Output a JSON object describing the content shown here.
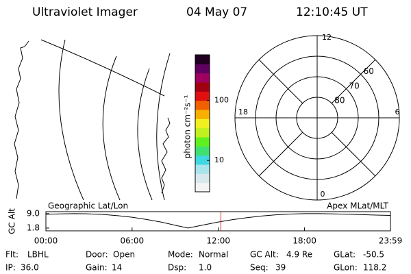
{
  "header": {
    "title": "Ultraviolet Imager",
    "date": "04 May 07",
    "time": "12:10:45 UT"
  },
  "colorbar": {
    "label": "photon cm⁻²s⁻¹",
    "log": true,
    "range": [
      3,
      575
    ],
    "ticks": [
      10,
      100
    ],
    "colors": [
      "#f4f4f4",
      "#d8e8ec",
      "#a8e4ec",
      "#40d8e0",
      "#40e070",
      "#60f020",
      "#c0f020",
      "#f0f020",
      "#f8b000",
      "#f06000",
      "#e01010",
      "#a00010",
      "#a00060",
      "#600060",
      "#200020"
    ]
  },
  "polar": {
    "mlt_labels": [
      12,
      6,
      0,
      18
    ],
    "lat_labels": [
      60,
      70,
      80
    ]
  },
  "chart_data": {
    "type": "line",
    "left_label": "Geographic Lat/Lon",
    "right_label": "Apex MLat/MLT",
    "ylabel": "GC Alt",
    "x": [
      0,
      1,
      2,
      3,
      4,
      5,
      6,
      7,
      8,
      9,
      9.9,
      11,
      12,
      13,
      14,
      15,
      16,
      17,
      18,
      19,
      20,
      21,
      22,
      23,
      23.98
    ],
    "series": [
      {
        "name": "GC Alt",
        "color": "#000000",
        "values": [
          8.7,
          8.9,
          9.0,
          8.9,
          8.6,
          8.0,
          7.2,
          6.1,
          4.8,
          3.2,
          1.8,
          3.4,
          4.8,
          6.0,
          7.0,
          7.8,
          8.4,
          8.8,
          9.0,
          9.0,
          8.9,
          8.7,
          8.5,
          8.3,
          8.1
        ]
      }
    ],
    "marker_x": 12.18,
    "marker_color": "#e02020",
    "xlim": [
      0,
      23.98
    ],
    "ylim": [
      0.4,
      10.0
    ],
    "xticks": [
      {
        "value": 0,
        "label": "00:00"
      },
      {
        "value": 6,
        "label": "06:00"
      },
      {
        "value": 12,
        "label": "12:00"
      },
      {
        "value": 18,
        "label": "18:00"
      },
      {
        "value": 23.98,
        "label": "23:59"
      }
    ],
    "yticks": [
      {
        "value": 9.0,
        "label": "9.0"
      },
      1.8
    ]
  },
  "footer": {
    "rows": [
      [
        [
          "Flt:",
          "LBHL"
        ],
        [
          "Door:",
          "Open"
        ],
        [
          "Mode:",
          "Normal"
        ],
        [
          "GC Alt:",
          "4.9 Re"
        ],
        [
          "GLat:",
          "-50.5"
        ]
      ],
      [
        [
          "IP:",
          "36.0"
        ],
        [
          "Gain:",
          "14"
        ],
        [
          "Dsp:",
          "1.0"
        ],
        [
          "Seq:",
          "39"
        ],
        [
          "GLon:",
          "118.2"
        ]
      ]
    ]
  }
}
